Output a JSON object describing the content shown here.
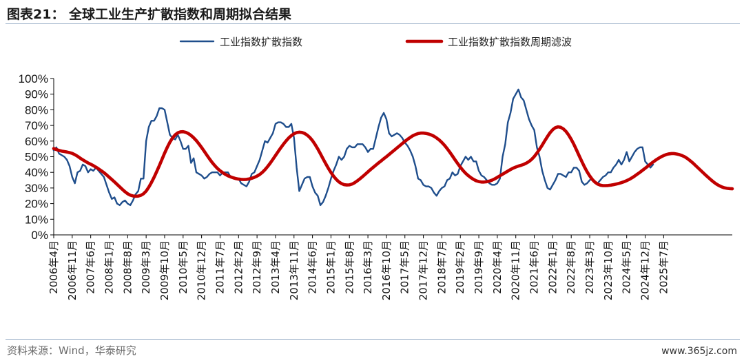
{
  "figure": {
    "title": "图表21：  全球工业生产扩散指数和周期拟合结果",
    "source": "资料来源：Wind，华泰研究",
    "watermark": "www.365jz.com"
  },
  "chart_data": {
    "type": "line",
    "legend_placement": "top",
    "series": [
      {
        "name": "工业指数扩散指数",
        "color": "#1f4e8c",
        "values": [
          54,
          56,
          52,
          51,
          50,
          48,
          44,
          37,
          33,
          40,
          41,
          45,
          44,
          40,
          42,
          41,
          43,
          41,
          39,
          37,
          32,
          27,
          23,
          24,
          20,
          19,
          21,
          22,
          20,
          19,
          22,
          26,
          28,
          36,
          36,
          60,
          69,
          73,
          73,
          76,
          81,
          81,
          80,
          72,
          64,
          62,
          61,
          64,
          60,
          55,
          55,
          57,
          46,
          49,
          40,
          39,
          38,
          36,
          37,
          39,
          40,
          40,
          40,
          38,
          40,
          40,
          40,
          37,
          36,
          36,
          36,
          33,
          32,
          31,
          34,
          39,
          40,
          44,
          48,
          54,
          60,
          59,
          62,
          65,
          71,
          72,
          72,
          71,
          69,
          69,
          71,
          62,
          43,
          28,
          32,
          36,
          37,
          37,
          31,
          27,
          25,
          19,
          21,
          25,
          30,
          36,
          41,
          45,
          50,
          48,
          50,
          55,
          57,
          56,
          56,
          58,
          58,
          58,
          56,
          53,
          55,
          55,
          62,
          69,
          75,
          78,
          74,
          65,
          63,
          64,
          65,
          64,
          62,
          59,
          57,
          54,
          50,
          44,
          36,
          35,
          32,
          31,
          31,
          30,
          27,
          25,
          28,
          30,
          31,
          35,
          36,
          40,
          38,
          39,
          44,
          47,
          50,
          48,
          50,
          47,
          47,
          41,
          38,
          37,
          35,
          33,
          32,
          32,
          33,
          36,
          50,
          58,
          72,
          78,
          87,
          90,
          93,
          88,
          86,
          80,
          74,
          70,
          67,
          56,
          50,
          41,
          35,
          30,
          29,
          32,
          35,
          39,
          39,
          38,
          37,
          40,
          40,
          43,
          43,
          41,
          34,
          32,
          33,
          35,
          36,
          34,
          33,
          35,
          37,
          38,
          40,
          40,
          43,
          45,
          48,
          45,
          48,
          53,
          47,
          50,
          53,
          55,
          56,
          56,
          47,
          45,
          43,
          45
        ]
      },
      {
        "name": "工业指数扩散指数周期滤波",
        "color": "#c00000",
        "values": [
          55.2,
          54.6,
          54.0,
          53.6,
          53.3,
          53.0,
          52.6,
          52.1,
          51.3,
          50.3,
          49.1,
          48.0,
          47.0,
          46.0,
          45.2,
          44.3,
          43.3,
          42.2,
          41.0,
          39.8,
          38.4,
          36.9,
          35.4,
          33.9,
          32.3,
          30.7,
          29.1,
          27.6,
          26.3,
          25.4,
          24.9,
          24.7,
          24.8,
          25.3,
          26.3,
          28.0,
          30.5,
          33.5,
          36.8,
          40.5,
          44.3,
          48.3,
          52.3,
          56.0,
          59.3,
          62.0,
          64.0,
          65.3,
          65.9,
          66.0,
          65.6,
          64.8,
          63.6,
          62.1,
          60.3,
          58.2,
          55.9,
          53.5,
          51.0,
          48.6,
          46.3,
          44.3,
          42.5,
          41.0,
          39.8,
          38.7,
          37.8,
          37.1,
          36.5,
          36.0,
          35.7,
          35.5,
          35.4,
          35.5,
          35.8,
          36.2,
          36.8,
          37.6,
          38.6,
          40.0,
          41.7,
          43.7,
          45.9,
          48.3,
          50.8,
          53.3,
          55.7,
          58.0,
          60.1,
          62.0,
          63.5,
          64.7,
          65.4,
          65.7,
          65.5,
          64.9,
          63.8,
          62.3,
          60.3,
          57.8,
          55.0,
          51.9,
          48.7,
          45.6,
          42.6,
          39.9,
          37.5,
          35.5,
          33.9,
          32.8,
          32.1,
          31.9,
          32.0,
          32.5,
          33.4,
          34.6,
          35.9,
          37.3,
          38.8,
          40.3,
          41.8,
          43.2,
          44.6,
          46.0,
          47.3,
          48.7,
          50.0,
          51.4,
          52.8,
          54.2,
          55.6,
          57.0,
          58.4,
          59.8,
          61.1,
          62.3,
          63.4,
          64.2,
          64.8,
          65.1,
          65.1,
          64.9,
          64.5,
          63.9,
          63.1,
          62.0,
          60.7,
          59.1,
          57.3,
          55.2,
          52.9,
          50.5,
          48.0,
          45.6,
          43.3,
          41.2,
          39.4,
          37.9,
          36.6,
          35.5,
          34.6,
          34.1,
          33.8,
          33.8,
          34.0,
          34.4,
          35.0,
          35.8,
          36.8,
          37.8,
          38.8,
          39.8,
          40.8,
          41.8,
          42.7,
          43.4,
          44.0,
          44.5,
          45.1,
          45.9,
          46.9,
          48.3,
          50.1,
          52.3,
          54.8,
          57.4,
          60.2,
          62.9,
          65.4,
          67.3,
          68.6,
          69.1,
          68.8,
          67.8,
          66.2,
          63.9,
          61.1,
          57.9,
          54.3,
          50.6,
          47.0,
          43.5,
          40.4,
          37.7,
          35.4,
          33.7,
          32.5,
          31.8,
          31.5,
          31.5,
          31.6,
          31.8,
          32.1,
          32.5,
          32.9,
          33.4,
          34.0,
          34.7,
          35.5,
          36.5,
          37.6,
          38.8,
          40.0,
          41.3,
          42.6,
          43.9,
          45.3,
          46.6,
          47.8,
          48.9,
          49.9,
          50.7,
          51.4,
          51.8,
          52.0,
          52.0,
          51.7,
          51.3,
          50.7,
          49.9,
          48.8,
          47.5,
          46.1,
          44.5,
          42.9,
          41.3,
          39.7,
          38.1,
          36.6,
          35.1,
          33.7,
          32.5,
          31.5,
          30.7,
          30.1,
          29.8,
          29.6,
          29.5
        ]
      }
    ],
    "x_start": "2006-04",
    "x_tick_labels": [
      "2006年4月",
      "2006年11月",
      "2007年6月",
      "2008年1月",
      "2008年8月",
      "2009年3月",
      "2009年10月",
      "2010年5月",
      "2010年12月",
      "2011年7月",
      "2012年2月",
      "2012年9月",
      "2013年4月",
      "2013年11月",
      "2014年6月",
      "2015年1月",
      "2015年8月",
      "2016年3月",
      "2016年10月",
      "2017年5月",
      "2017年12月",
      "2018年7月",
      "2019年2月",
      "2019年9月",
      "2020年4月",
      "2020年11月",
      "2021年6月",
      "2022年1月",
      "2022年8月",
      "2023年3月",
      "2023年10月",
      "2024年5月",
      "2024年12月",
      "2025年7月"
    ],
    "y_tick_labels": [
      "0%",
      "10%",
      "20%",
      "30%",
      "40%",
      "50%",
      "60%",
      "70%",
      "80%",
      "90%",
      "100%"
    ],
    "ylim": [
      0,
      100
    ],
    "grid": false
  }
}
